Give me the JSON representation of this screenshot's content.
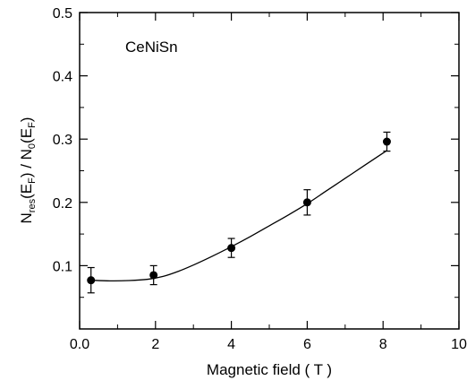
{
  "chart_data": {
    "type": "scatter",
    "annotation": "CeNiSn",
    "xlabel": "Magnetic field  ( T )",
    "ylabel": {
      "numerator": {
        "base": "N",
        "sub": "res",
        "arg_base": "E",
        "arg_sub": "F"
      },
      "separator": " / ",
      "denominator": {
        "base": "N",
        "sub": "0",
        "arg_base": "E",
        "arg_sub": "F"
      }
    },
    "xlim": [
      0,
      10
    ],
    "ylim": [
      0.0,
      0.5
    ],
    "x_ticks": [
      0,
      2,
      4,
      6,
      8,
      10
    ],
    "x_tick_labels": [
      "0.0",
      "2",
      "4",
      "6",
      "8",
      "10"
    ],
    "y_ticks": [
      0.1,
      0.2,
      0.3,
      0.4,
      0.5
    ],
    "y_tick_labels": [
      "0.1",
      "0.2",
      "0.3",
      "0.4",
      "0.5"
    ],
    "grid": false,
    "points": [
      {
        "x": 0.3,
        "y": 0.077,
        "err": 0.02
      },
      {
        "x": 1.95,
        "y": 0.085,
        "err": 0.015
      },
      {
        "x": 4.0,
        "y": 0.128,
        "err": 0.015
      },
      {
        "x": 6.0,
        "y": 0.2,
        "err": 0.02
      },
      {
        "x": 8.1,
        "y": 0.296,
        "err": 0.015
      }
    ],
    "fit_curve": [
      [
        0.3,
        0.077
      ],
      [
        0.8,
        0.076
      ],
      [
        1.3,
        0.0765
      ],
      [
        1.8,
        0.0785
      ],
      [
        2.2,
        0.083
      ],
      [
        2.6,
        0.091
      ],
      [
        3.0,
        0.101
      ],
      [
        3.5,
        0.115
      ],
      [
        4.0,
        0.13
      ],
      [
        4.5,
        0.146
      ],
      [
        5.0,
        0.163
      ],
      [
        5.5,
        0.18
      ],
      [
        6.0,
        0.198
      ],
      [
        6.5,
        0.218
      ],
      [
        7.0,
        0.238
      ],
      [
        7.5,
        0.258
      ],
      [
        8.1,
        0.282
      ]
    ]
  }
}
